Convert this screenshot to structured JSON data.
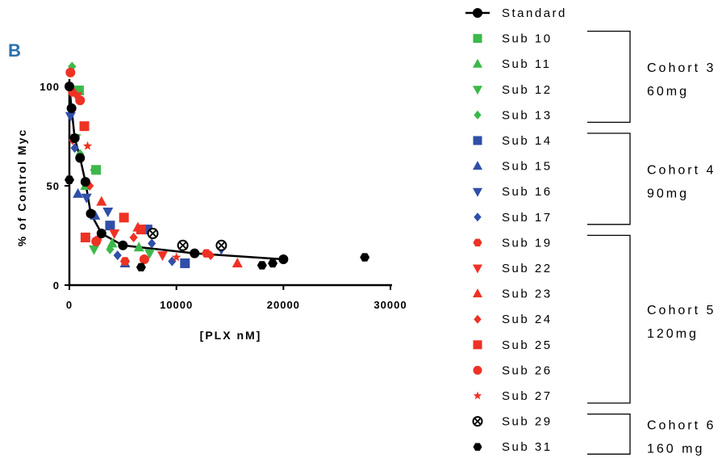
{
  "panel_label": "B",
  "colors": {
    "standard": "#000000",
    "cohort3": "#3cb94a",
    "cohort4": "#2f4fa8",
    "cohort5": "#ee3224",
    "cohort6": "#000000"
  },
  "chart_data": {
    "type": "scatter",
    "xlabel": "[PLX nM]",
    "ylabel": "% of Control Myc",
    "xlim": [
      0,
      30000
    ],
    "ylim": [
      0,
      110
    ],
    "x_ticks": [
      0,
      10000,
      20000,
      30000
    ],
    "x_tick_labels": [
      "0",
      "10000",
      "20000",
      "30000"
    ],
    "y_ticks": [
      0,
      50,
      100
    ],
    "y_tick_labels": [
      "0",
      "50",
      "100"
    ],
    "grid": false,
    "legend_position": "right",
    "series": [
      {
        "name": "Standard",
        "marker": "circle-line",
        "color": "#000000",
        "x": [
          0,
          200,
          500,
          1000,
          1500,
          2000,
          3000,
          5000,
          11700,
          20000
        ],
        "y": [
          100,
          89,
          74,
          64,
          52,
          36,
          26,
          20,
          16,
          13
        ]
      },
      {
        "name": "Sub 10",
        "marker": "square",
        "color": "#3cb94a",
        "x": [
          2500,
          900
        ],
        "y": [
          58,
          98
        ]
      },
      {
        "name": "Sub 11",
        "marker": "triangle-up",
        "color": "#3cb94a",
        "x": [
          1500,
          4000,
          6500,
          400
        ],
        "y": [
          50,
          21,
          19,
          98
        ]
      },
      {
        "name": "Sub 12",
        "marker": "triangle-down",
        "color": "#3cb94a",
        "x": [
          2300,
          7500,
          600
        ],
        "y": [
          18,
          16,
          74
        ]
      },
      {
        "name": "Sub 13",
        "marker": "diamond",
        "color": "#3cb94a",
        "x": [
          250,
          2300,
          3800,
          1000
        ],
        "y": [
          110,
          58,
          18,
          66
        ]
      },
      {
        "name": "Sub 14",
        "marker": "square",
        "color": "#2f4fa8",
        "x": [
          3800,
          7300,
          10800
        ],
        "y": [
          30,
          28,
          11
        ]
      },
      {
        "name": "Sub 15",
        "marker": "triangle-up",
        "color": "#2f4fa8",
        "x": [
          800,
          5200,
          2400
        ],
        "y": [
          46,
          11,
          35
        ]
      },
      {
        "name": "Sub 16",
        "marker": "triangle-down",
        "color": "#2f4fa8",
        "x": [
          100,
          3600,
          14200,
          1600
        ],
        "y": [
          85,
          37,
          18,
          44
        ]
      },
      {
        "name": "Sub 17",
        "marker": "diamond",
        "color": "#2f4fa8",
        "x": [
          500,
          4500,
          9600,
          7700
        ],
        "y": [
          69,
          15,
          12,
          21
        ]
      },
      {
        "name": "Sub 19",
        "marker": "hexagon",
        "color": "#ee3224",
        "x": [
          300,
          5200,
          12800
        ],
        "y": [
          97,
          12,
          16
        ]
      },
      {
        "name": "Sub 22",
        "marker": "triangle-down",
        "color": "#ee3224",
        "x": [
          700,
          4200,
          8700
        ],
        "y": [
          95,
          26,
          15
        ]
      },
      {
        "name": "Sub 23",
        "marker": "triangle-up",
        "color": "#ee3224",
        "x": [
          3000,
          6400,
          15700
        ],
        "y": [
          42,
          29,
          11
        ]
      },
      {
        "name": "Sub 24",
        "marker": "diamond",
        "color": "#ee3224",
        "x": [
          300,
          1900,
          6000,
          13200
        ],
        "y": [
          73,
          50,
          24,
          15
        ]
      },
      {
        "name": "Sub 25",
        "marker": "square",
        "color": "#ee3224",
        "x": [
          1400,
          1500,
          5100,
          6700
        ],
        "y": [
          80,
          24,
          34,
          28
        ]
      },
      {
        "name": "Sub 26",
        "marker": "circle",
        "color": "#ee3224",
        "x": [
          100,
          1000,
          2500,
          7000
        ],
        "y": [
          107,
          93,
          22,
          13
        ]
      },
      {
        "name": "Sub 27",
        "marker": "star",
        "color": "#ee3224",
        "x": [
          1700,
          2800,
          10000
        ],
        "y": [
          70,
          24,
          14
        ]
      },
      {
        "name": "Sub 29",
        "marker": "circle-x",
        "color": "#000000",
        "x": [
          7800,
          10600,
          14200
        ],
        "y": [
          26,
          20,
          20
        ]
      },
      {
        "name": "Sub 31",
        "marker": "hexagon",
        "color": "#000000",
        "x": [
          0,
          6700,
          18000,
          19000,
          27600
        ],
        "y": [
          53,
          9,
          10,
          11,
          14
        ]
      }
    ]
  },
  "legend": {
    "entries": [
      "Standard",
      "Sub 10",
      "Sub 11",
      "Sub 12",
      "Sub 13",
      "Sub 14",
      "Sub 15",
      "Sub 16",
      "Sub 17",
      "Sub 19",
      "Sub 22",
      "Sub 23",
      "Sub 24",
      "Sub 25",
      "Sub 26",
      "Sub 27",
      "Sub 29",
      "Sub 31"
    ]
  },
  "cohorts": [
    {
      "line1": "Cohort 3",
      "line2": "60mg",
      "members": [
        "Sub 10",
        "Sub 11",
        "Sub 12",
        "Sub 13"
      ]
    },
    {
      "line1": "Cohort 4",
      "line2": "90mg",
      "members": [
        "Sub 14",
        "Sub 15",
        "Sub 16",
        "Sub 17"
      ]
    },
    {
      "line1": "Cohort 5",
      "line2": "120mg",
      "members": [
        "Sub 19",
        "Sub 22",
        "Sub 23",
        "Sub 24",
        "Sub 25",
        "Sub 26",
        "Sub 27"
      ]
    },
    {
      "line1": "Cohort 6",
      "line2": "160 mg",
      "members": [
        "Sub 29",
        "Sub 31"
      ]
    }
  ]
}
